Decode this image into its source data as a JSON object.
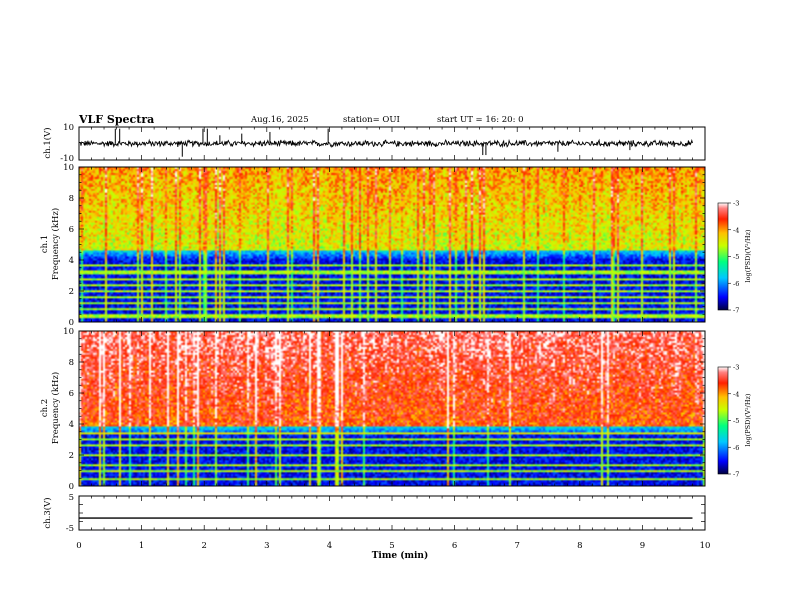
{
  "header": {
    "title": "VLF Spectra",
    "date": "Aug.16, 2025",
    "station": "station= OUI",
    "start": "start  UT  =   16: 20: 0"
  },
  "chart_data": [
    {
      "type": "line",
      "panel": "ch1-waveform",
      "ylabel": "ch.1(V)",
      "ylim": [
        -10,
        10
      ],
      "ytick_labels": [
        "10",
        "-10"
      ],
      "xlim": [
        0,
        10
      ],
      "baseline": 0,
      "noise_amplitude": 1.5,
      "spikes": [
        {
          "x": 0.58,
          "y": 9
        },
        {
          "x": 0.65,
          "y": 9
        },
        {
          "x": 1.65,
          "y": -8
        },
        {
          "x": 1.98,
          "y": 9
        },
        {
          "x": 2.05,
          "y": 9
        },
        {
          "x": 2.25,
          "y": 5
        },
        {
          "x": 2.6,
          "y": 6
        },
        {
          "x": 3.05,
          "y": 7
        },
        {
          "x": 3.98,
          "y": 9
        },
        {
          "x": 6.45,
          "y": -7
        },
        {
          "x": 6.5,
          "y": -7
        },
        {
          "x": 7.65,
          "y": -5
        },
        {
          "x": 8.8,
          "y": -4
        }
      ]
    },
    {
      "type": "heatmap",
      "panel": "ch1-spectrogram",
      "ylabel": "ch.1\nFrequency (kHz)",
      "ylim": [
        0,
        10
      ],
      "ytick_labels": [
        "0",
        "2",
        "4",
        "6",
        "8",
        "10"
      ],
      "xlim": [
        0,
        10
      ],
      "colorbar_label": "log(PSD)(V²/Hz)",
      "colorbar_range": [
        -7,
        -3
      ],
      "colorbar_ticks": [
        "-3",
        "-4",
        "-5",
        "-6",
        "-7"
      ],
      "dark_band_top_khz": 4.6,
      "strong_lines_khz": [
        0.3,
        0.5,
        0.8,
        1.2,
        1.6,
        2.0,
        2.4,
        2.8,
        3.2,
        3.6
      ]
    },
    {
      "type": "heatmap",
      "panel": "ch2-spectrogram",
      "ylabel": "ch.2\nFrequency (kHz)",
      "ylim": [
        0,
        10
      ],
      "ytick_labels": [
        "0",
        "2",
        "4",
        "6",
        "8",
        "10"
      ],
      "xlim": [
        0,
        10
      ],
      "colorbar_label": "log(PSD)(V²/Hz)",
      "colorbar_range": [
        -7,
        -3
      ],
      "colorbar_ticks": [
        "-3",
        "-4",
        "-5",
        "-6",
        "-7"
      ],
      "dark_band_top_khz": 3.8,
      "strong_lines_khz": [
        0.5,
        1.0,
        1.4,
        2.0,
        2.6,
        3.0,
        3.4
      ]
    },
    {
      "type": "line",
      "panel": "ch3-waveform",
      "ylabel": "ch.3(V)",
      "ylim": [
        -5,
        5
      ],
      "ytick_labels": [
        "5",
        "-5"
      ],
      "xlim": [
        0,
        10
      ],
      "xlabel": "Time  (min)",
      "xtick_labels": [
        "0",
        "1",
        "2",
        "3",
        "4",
        "5",
        "6",
        "7",
        "8",
        "9",
        "10"
      ],
      "x": [
        0,
        9.8
      ],
      "y": [
        -1.5,
        -1.5
      ]
    }
  ],
  "colors": {
    "axis": "#000000",
    "trace": "#000000"
  }
}
